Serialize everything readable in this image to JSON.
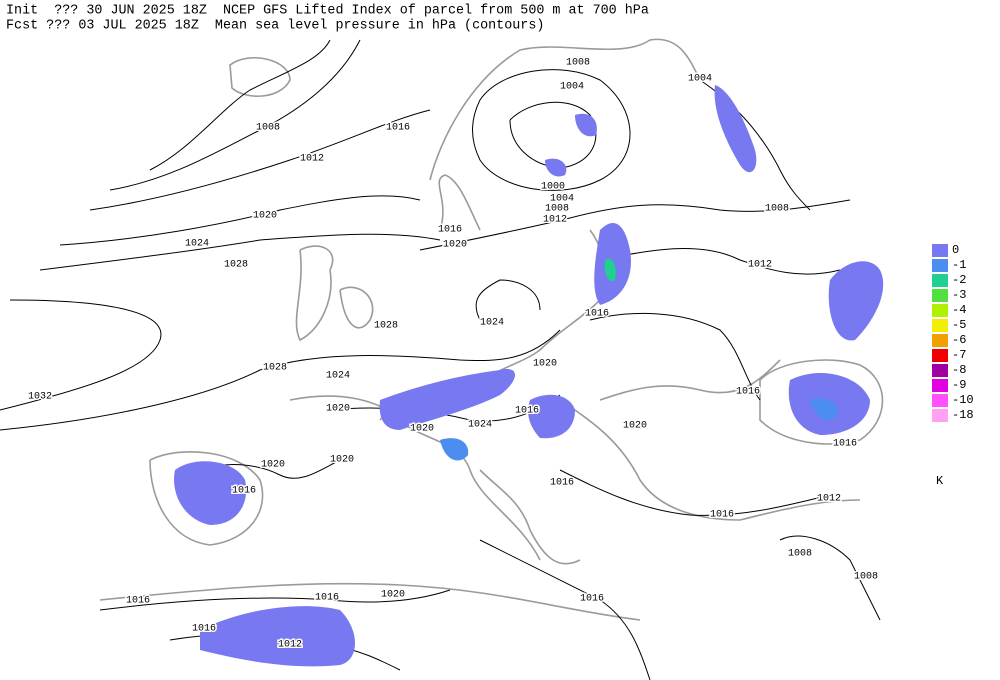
{
  "header": {
    "line1": "Init  ??? 30 JUN 2025 18Z  NCEP GFS Lifted Index of parcel from 500 m at 700 hPa",
    "line2": "Fcst ??? 03 JUL 2025 18Z  Mean sea level pressure in hPa (contours)"
  },
  "isobar_labels": [
    1008,
    1004,
    1004,
    1008,
    1016,
    1012,
    1000,
    1004,
    1008,
    1012,
    1008,
    1020,
    1016,
    1020,
    1024,
    1012,
    1028,
    1016,
    1024,
    1028,
    1020,
    1028,
    1024,
    1032,
    1016,
    1020,
    1016,
    1024,
    1020,
    1020,
    1016,
    1020,
    1020,
    1016,
    1016,
    1012,
    1016,
    1008,
    1008,
    1016,
    1016,
    1020,
    1016,
    1016,
    1012
  ],
  "legend": {
    "unit": "K",
    "entries": [
      {
        "value": 0,
        "color": "#7878f0"
      },
      {
        "value": -1,
        "color": "#4c8ef0"
      },
      {
        "value": -2,
        "color": "#20d090"
      },
      {
        "value": -3,
        "color": "#50e040"
      },
      {
        "value": -4,
        "color": "#b0f000"
      },
      {
        "value": -5,
        "color": "#f0f000"
      },
      {
        "value": -6,
        "color": "#f0a000"
      },
      {
        "value": -7,
        "color": "#f00000"
      },
      {
        "value": -8,
        "color": "#a000a0"
      },
      {
        "value": -9,
        "color": "#e000e0"
      },
      {
        "value": -10,
        "color": "#ff50ff"
      },
      {
        "value": -18,
        "color": "#ffa0f0"
      }
    ]
  }
}
